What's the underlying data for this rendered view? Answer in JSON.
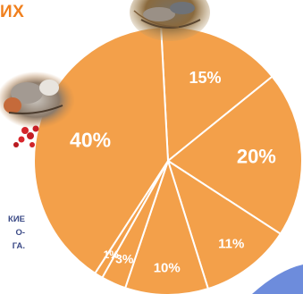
{
  "header_fragment": "ИХ",
  "side_caption_lines": [
    "КИЕ",
    "О-",
    "ГА."
  ],
  "colors": {
    "accent_text": "#f0801e",
    "caption_text": "#3b4a86",
    "slice_fill": "#f3a04a",
    "slice_stroke": "#ffffff",
    "blue_shape": "#6d8cdc"
  },
  "images": {
    "top_photo": "bird-in-nest-photo",
    "left_photo": "bird-with-red-berries-photo"
  },
  "chart_data": {
    "type": "pie",
    "title": "",
    "slices": [
      {
        "label": "15%",
        "value": 15
      },
      {
        "label": "20%",
        "value": 20
      },
      {
        "label": "11%",
        "value": 11
      },
      {
        "label": "10%",
        "value": 10
      },
      {
        "label": "3%",
        "value": 3
      },
      {
        "label": "1%",
        "value": 1
      },
      {
        "label": "40%",
        "value": 40
      }
    ]
  }
}
